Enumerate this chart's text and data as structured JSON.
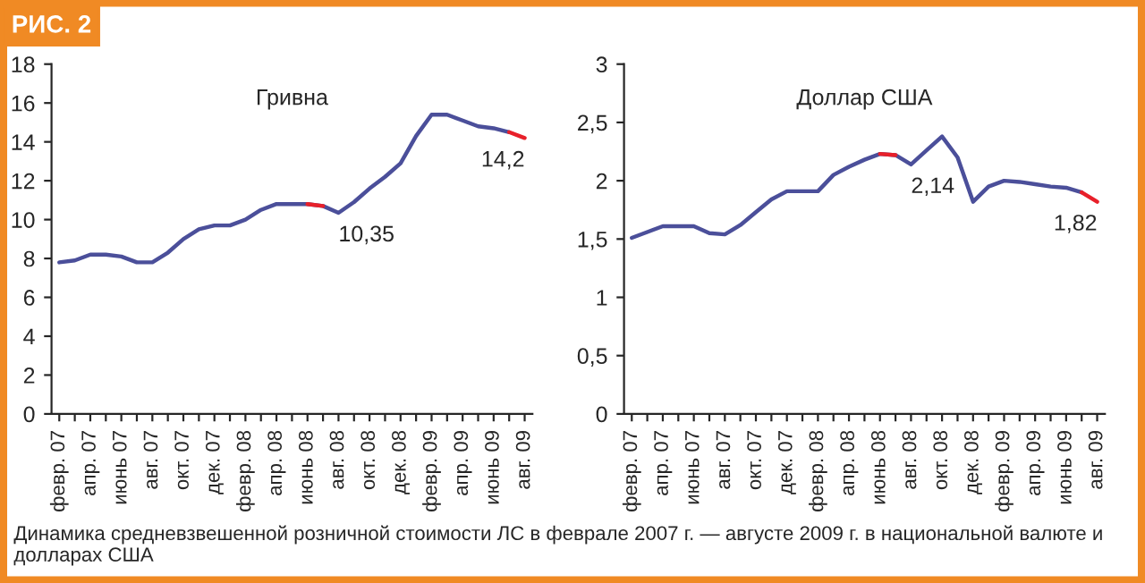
{
  "chart_data": [
    {
      "type": "line",
      "title": "РИС. 2",
      "subtitle": "Гривна",
      "categories": [
        "февр. 07",
        null,
        "апр. 07",
        null,
        "июнь 07",
        null,
        "авг. 07",
        null,
        "окт. 07",
        null,
        "дек. 07",
        null,
        "февр. 08",
        null,
        "апр. 08",
        null,
        "июнь 08",
        null,
        "авг. 08",
        null,
        "окт. 08",
        null,
        "дек. 08",
        null,
        "февр. 09",
        null,
        "апр. 09",
        null,
        "июнь 09",
        null,
        "авг. 09"
      ],
      "series": [
        {
          "color": "#4b4f9a",
          "values": [
            7.8,
            7.9,
            8.2,
            8.2,
            8.1,
            7.8,
            7.8,
            8.3,
            9.0,
            9.5,
            9.7,
            9.7,
            10.0,
            10.5,
            10.8,
            10.8,
            10.8,
            10.7,
            10.35,
            10.9,
            11.6,
            12.2,
            12.9,
            14.3,
            15.4,
            15.4,
            15.1,
            14.8,
            14.7,
            14.5,
            null
          ],
          "value_labels": [
            null,
            null,
            null,
            null,
            null,
            null,
            null,
            null,
            null,
            null,
            null,
            null,
            null,
            null,
            null,
            null,
            null,
            null,
            "10,35",
            null,
            null,
            null,
            null,
            null,
            null,
            null,
            null,
            null,
            null,
            null,
            null
          ]
        },
        {
          "color": "#e8202a",
          "values": [
            null,
            null,
            null,
            null,
            null,
            null,
            null,
            null,
            null,
            null,
            null,
            null,
            null,
            null,
            null,
            null,
            10.8,
            10.7,
            null,
            null,
            null,
            null,
            null,
            null,
            null,
            null,
            null,
            null,
            null,
            14.5,
            14.2
          ],
          "value_labels": [
            null,
            null,
            null,
            null,
            null,
            null,
            null,
            null,
            null,
            null,
            null,
            null,
            null,
            null,
            null,
            null,
            null,
            null,
            null,
            null,
            null,
            null,
            null,
            null,
            null,
            null,
            null,
            null,
            null,
            null,
            "14,2"
          ]
        }
      ],
      "ylim": [
        0,
        18
      ],
      "yticks": [
        0,
        2,
        4,
        6,
        8,
        10,
        12,
        14,
        16,
        18
      ],
      "grid": false,
      "legend": false,
      "marker": "none",
      "line_style": "solid",
      "annotations": [
        "Динамика средневзвешенной розничной стоимости ЛС в феврале 2007 г. — августе 2009 г. в национальной валюте и долларах США"
      ]
    },
    {
      "type": "line",
      "subtitle": "Доллар США",
      "categories": [
        "февр. 07",
        null,
        "апр. 07",
        null,
        "июнь 07",
        null,
        "авг. 07",
        null,
        "окт. 07",
        null,
        "дек. 07",
        null,
        "февр. 08",
        null,
        "апр. 08",
        null,
        "июнь 08",
        null,
        "авг. 08",
        null,
        "окт. 08",
        null,
        "дек. 08",
        null,
        "февр. 09",
        null,
        "апр. 09",
        null,
        "июнь 09",
        null,
        "авг. 09"
      ],
      "series": [
        {
          "color": "#4b4f9a",
          "values": [
            1.51,
            1.56,
            1.61,
            1.61,
            1.61,
            1.55,
            1.54,
            1.62,
            1.73,
            1.84,
            1.91,
            1.91,
            1.91,
            2.05,
            2.12,
            2.18,
            2.23,
            2.22,
            2.14,
            2.26,
            2.38,
            2.2,
            1.82,
            1.95,
            2.0,
            1.99,
            1.97,
            1.95,
            1.94,
            1.9,
            null
          ],
          "value_labels": [
            null,
            null,
            null,
            null,
            null,
            null,
            null,
            null,
            null,
            null,
            null,
            null,
            null,
            null,
            null,
            null,
            null,
            null,
            "2,14",
            null,
            null,
            null,
            null,
            null,
            null,
            null,
            null,
            null,
            null,
            null,
            null
          ]
        },
        {
          "color": "#e8202a",
          "values": [
            null,
            null,
            null,
            null,
            null,
            null,
            null,
            null,
            null,
            null,
            null,
            null,
            null,
            null,
            null,
            null,
            2.23,
            2.22,
            null,
            null,
            null,
            null,
            null,
            null,
            null,
            null,
            null,
            null,
            null,
            1.9,
            1.82
          ],
          "value_labels": [
            null,
            null,
            null,
            null,
            null,
            null,
            null,
            null,
            null,
            null,
            null,
            null,
            null,
            null,
            null,
            null,
            null,
            null,
            null,
            null,
            null,
            null,
            null,
            null,
            null,
            null,
            null,
            null,
            null,
            null,
            "1,82"
          ]
        }
      ],
      "ylim": [
        0,
        3
      ],
      "yticks": [
        0,
        {
          "value": 0.5,
          "label": "0,5"
        },
        1,
        {
          "value": 1.5,
          "label": "1,5"
        },
        2,
        {
          "value": 2.5,
          "label": "2,5"
        },
        3
      ],
      "grid": false,
      "legend": false,
      "marker": "none",
      "line_style": "solid"
    }
  ]
}
